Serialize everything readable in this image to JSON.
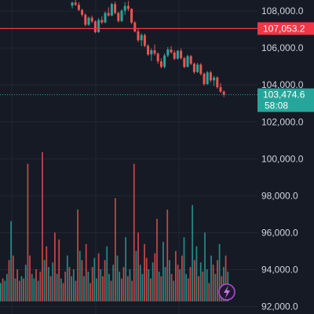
{
  "chart_data": {
    "type": "candlestick",
    "price_axis": {
      "ticks": [
        "108,000.0",
        "106,000.0",
        "104,000.0",
        "102,000.0",
        "100,000.0",
        "98,000.0",
        "96,000.0",
        "94,000.0",
        "92,000.0"
      ]
    },
    "price_range": [
      91600,
      108600
    ],
    "reference_line": {
      "label": "107,053.2",
      "value": 107053.2,
      "color": "#f23645"
    },
    "current_price": {
      "label": "103,474.6",
      "value": 103474.6,
      "countdown": "58:08",
      "color": "#26a69a"
    },
    "candles": [
      [
        108300,
        108520,
        108150,
        108460
      ],
      [
        108460,
        108600,
        108280,
        108340
      ],
      [
        108340,
        108480,
        108000,
        108060
      ],
      [
        108060,
        108120,
        107700,
        107800
      ],
      [
        107800,
        107880,
        107180,
        107260
      ],
      [
        107260,
        107700,
        107200,
        107640
      ],
      [
        107640,
        107760,
        107350,
        107440
      ],
      [
        107440,
        107500,
        106800,
        106860
      ],
      [
        106860,
        107620,
        106820,
        107520
      ],
      [
        107520,
        107720,
        107300,
        107380
      ],
      [
        107380,
        107980,
        107340,
        107900
      ],
      [
        107900,
        108200,
        107700,
        107760
      ],
      [
        107760,
        108450,
        107720,
        108380
      ],
      [
        108380,
        108520,
        107820,
        107900
      ],
      [
        107900,
        107960,
        107380,
        107460
      ],
      [
        107460,
        108100,
        107400,
        108020
      ],
      [
        108020,
        108480,
        107800,
        108280
      ],
      [
        108280,
        108550,
        108000,
        108120
      ],
      [
        108120,
        108150,
        107300,
        107380
      ],
      [
        107380,
        107450,
        106840,
        106900
      ],
      [
        106900,
        107050,
        106320,
        106420
      ],
      [
        106420,
        106800,
        106100,
        106700
      ],
      [
        106700,
        106780,
        106050,
        106120
      ],
      [
        106120,
        106200,
        105580,
        105650
      ],
      [
        105650,
        105980,
        105300,
        105880
      ],
      [
        105880,
        106200,
        105600,
        105700
      ],
      [
        105700,
        105760,
        105150,
        105280
      ],
      [
        105280,
        105450,
        104900,
        104980
      ],
      [
        104980,
        105700,
        104900,
        105600
      ],
      [
        105600,
        106050,
        105500,
        105920
      ],
      [
        105920,
        106100,
        105700,
        105760
      ],
      [
        105760,
        105880,
        105340,
        105420
      ],
      [
        105420,
        105900,
        105380,
        105850
      ],
      [
        105850,
        105980,
        105380,
        105450
      ],
      [
        105450,
        105520,
        104900,
        104980
      ],
      [
        104980,
        105640,
        104950,
        105560
      ],
      [
        105560,
        105620,
        105080,
        105150
      ],
      [
        105150,
        105220,
        104600,
        104700
      ],
      [
        104700,
        105200,
        104650,
        105100
      ],
      [
        105100,
        105180,
        104520,
        104600
      ],
      [
        104600,
        104680,
        103950,
        104050
      ],
      [
        104050,
        104760,
        104000,
        104680
      ],
      [
        104680,
        104760,
        104150,
        104250
      ],
      [
        104250,
        104500,
        103950,
        104400
      ],
      [
        104400,
        104470,
        103800,
        103880
      ],
      [
        103880,
        104100,
        103580,
        103640
      ],
      [
        103640,
        103700,
        103350,
        103474.6
      ]
    ],
    "volumes": [
      0.08,
      0.1,
      0.09,
      0.12,
      0.18,
      0.35,
      0.2,
      0.1,
      0.14,
      0.09,
      0.11,
      0.1,
      0.16,
      0.6,
      0.2,
      0.12,
      0.1,
      0.14,
      0.09,
      0.13,
      0.65,
      0.18,
      0.24,
      0.15,
      0.11,
      0.17,
      0.3,
      0.12,
      0.27,
      0.1,
      0.08,
      0.13,
      0.2,
      0.15,
      0.11,
      0.14,
      0.09,
      0.4,
      0.22,
      0.18,
      0.11,
      0.25,
      0.13,
      0.08,
      0.15,
      0.19,
      0.1,
      0.21,
      0.14,
      0.11,
      0.18,
      0.24,
      0.12,
      0.09,
      0.16,
      0.45,
      0.2,
      0.13,
      0.1,
      0.15,
      0.28,
      0.11,
      0.14,
      0.09,
      0.6,
      0.22,
      0.3,
      0.16,
      0.12,
      0.25,
      0.19,
      0.14,
      0.1,
      0.17,
      0.21,
      0.36,
      0.13,
      0.11,
      0.26,
      0.15,
      0.4,
      0.18,
      0.12,
      0.09,
      0.22,
      0.16,
      0.14,
      0.2,
      0.28,
      0.12,
      0.1,
      0.15,
      0.42,
      0.18,
      0.24,
      0.11,
      0.17,
      0.13,
      0.3,
      0.14,
      0.08,
      0.2,
      0.16,
      0.12,
      0.18,
      0.25,
      0.11,
      0.15,
      0.2,
      0.13
    ],
    "volume_up": [
      true,
      false,
      true,
      true,
      false,
      true,
      false,
      true,
      false,
      false,
      true,
      false,
      true,
      false,
      false,
      true,
      true,
      false,
      true,
      false,
      false,
      true,
      false,
      true,
      false,
      true,
      false,
      true,
      false,
      true,
      false,
      false,
      true,
      false,
      true,
      true,
      false,
      false,
      true,
      false,
      true,
      false,
      true,
      false,
      false,
      true,
      true,
      false,
      true,
      false,
      false,
      true,
      true,
      false,
      true,
      false,
      true,
      true,
      false,
      false,
      true,
      false,
      true,
      false,
      false,
      true,
      false,
      true,
      true,
      false,
      false,
      true,
      false,
      true,
      false,
      false,
      true,
      false,
      true,
      true,
      false,
      true,
      false,
      true,
      false,
      false,
      true,
      false,
      true,
      true,
      false,
      false,
      true,
      false,
      true,
      false,
      true,
      false,
      true,
      true,
      false,
      true,
      false,
      true,
      false,
      true,
      false,
      true,
      false,
      true
    ]
  },
  "colors": {
    "up": "#26a69a",
    "down": "#ef5350",
    "bg": "#161a25",
    "grid": "#232733",
    "axis_text": "#d1d4dc"
  },
  "badge_icon": "lightning-icon"
}
